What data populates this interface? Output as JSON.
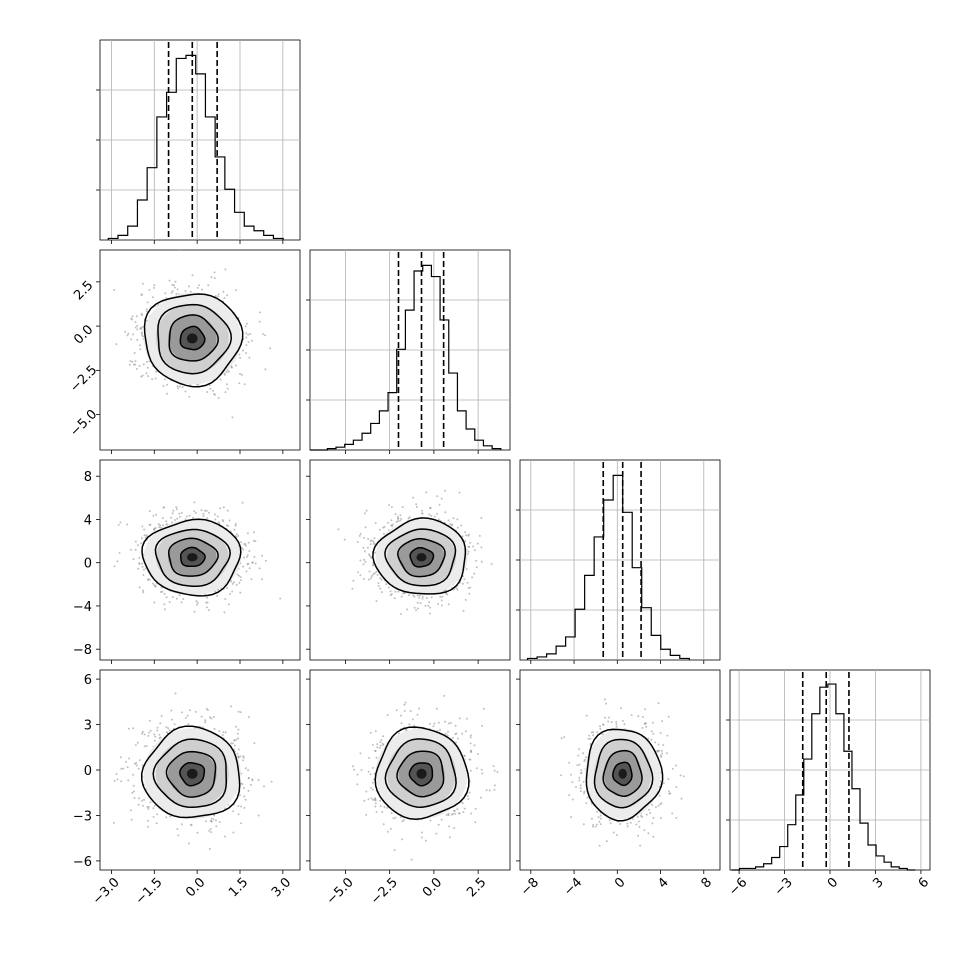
{
  "chart_data": {
    "type": "corner",
    "parameters": [
      {
        "hist": {
          "bins": [
            -3.11,
            -2.77,
            -2.43,
            -2.09,
            -1.75,
            -1.41,
            -1.07,
            -0.73,
            -0.39,
            -0.05,
            0.29,
            0.63,
            0.97,
            1.31,
            1.65,
            1.99,
            2.33,
            2.67,
            3.01
          ],
          "counts": [
            1,
            3,
            9,
            26,
            47,
            80,
            96,
            118,
            120,
            108,
            80,
            54,
            33,
            18,
            9,
            6,
            3,
            1
          ],
          "quantiles": [
            -1.0,
            -0.17,
            0.7
          ],
          "ylim": [
            0,
            130
          ]
        },
        "xlim": [
          -3.4,
          3.6
        ],
        "xticks": [
          -3.0,
          -1.5,
          0.0,
          1.5,
          3.0
        ],
        "xtick_labels": [
          "−3.0",
          "−1.5",
          "0.0",
          "1.5",
          "3.0"
        ]
      },
      {
        "hist": {
          "bins": [
            -7.0,
            -6.51,
            -6.02,
            -5.53,
            -5.04,
            -4.55,
            -4.06,
            -3.57,
            -3.08,
            -2.59,
            -2.1,
            -1.61,
            -1.12,
            -0.63,
            -0.14,
            0.35,
            0.84,
            1.33,
            1.82,
            2.31,
            2.8,
            3.29,
            3.78
          ],
          "counts": [
            0,
            0,
            1,
            2,
            4,
            7,
            12,
            19,
            28,
            41,
            72,
            100,
            128,
            132,
            124,
            93,
            55,
            28,
            15,
            7,
            3,
            1
          ],
          "quantiles": [
            -2.0,
            -0.7,
            0.55
          ],
          "ylim": [
            0,
            143
          ]
        },
        "xlim": [
          -7.0,
          4.3
        ],
        "xticks": [
          -5.0,
          -2.5,
          0.0,
          2.5
        ],
        "xtick_labels": [
          "−5.0",
          "−2.5",
          "0.0",
          "2.5"
        ]
      },
      {
        "hist": {
          "bins": [
            -8.3,
            -7.42,
            -6.54,
            -5.66,
            -4.78,
            -3.9,
            -3.02,
            -2.14,
            -1.26,
            -0.38,
            0.5,
            1.38,
            2.26,
            3.14,
            4.02,
            4.9,
            5.78,
            6.66
          ],
          "counts": [
            1,
            2,
            4,
            9,
            15,
            33,
            55,
            80,
            104,
            120,
            96,
            60,
            34,
            16,
            7,
            3,
            1
          ],
          "quantiles": [
            -1.3,
            0.5,
            2.2
          ],
          "ylim": [
            0,
            130
          ]
        },
        "xlim": [
          -9.0,
          9.5
        ],
        "xticks": [
          -8,
          -4,
          0,
          4,
          8
        ],
        "xtick_labels": [
          "−8",
          "−4",
          "0",
          "4",
          "8"
        ]
      },
      {
        "hist": {
          "bins": [
            -6.5,
            -5.97,
            -5.44,
            -4.91,
            -4.38,
            -3.85,
            -3.32,
            -2.79,
            -2.26,
            -1.73,
            -1.2,
            -0.67,
            -0.14,
            0.39,
            0.92,
            1.45,
            1.98,
            2.51,
            3.04,
            3.57,
            4.04,
            4.57,
            5.1,
            5.63
          ],
          "counts": [
            0,
            1,
            1,
            2,
            4,
            8,
            15,
            29,
            48,
            71,
            100,
            117,
            119,
            100,
            76,
            52,
            30,
            16,
            9,
            5,
            2,
            1,
            0
          ],
          "quantiles": [
            -1.8,
            -0.25,
            1.25
          ],
          "ylim": [
            0,
            128
          ]
        },
        "xlim": [
          -6.6,
          6.6
        ],
        "xticks": [
          -6,
          -3,
          0,
          3,
          6
        ],
        "xtick_labels": [
          "−6",
          "−3",
          "0",
          "3",
          "6"
        ]
      }
    ],
    "ytick_rows": [
      null,
      {
        "ticks": [
          2.5,
          0.0,
          -2.5,
          -5.0
        ],
        "labels": [
          "2.5",
          "0.0",
          "−2.5",
          "−5.0"
        ],
        "rotated": true
      },
      {
        "ticks": [
          8,
          4,
          0,
          -4,
          -8
        ],
        "labels": [
          "8",
          "4",
          "0",
          "−4",
          "−8"
        ],
        "rotated": false
      },
      {
        "ticks": [
          6,
          3,
          0,
          -3,
          -6
        ],
        "labels": [
          "6",
          "3",
          "0",
          "−3",
          "−6"
        ],
        "rotated": false
      }
    ],
    "pairs": [
      {
        "row": 1,
        "col": 0,
        "center": [
          -0.17,
          -0.7
        ],
        "sigma": [
          0.85,
          1.3
        ]
      },
      {
        "row": 2,
        "col": 0,
        "center": [
          -0.17,
          0.5
        ],
        "sigma": [
          0.85,
          1.75
        ]
      },
      {
        "row": 2,
        "col": 1,
        "center": [
          -0.7,
          0.5
        ],
        "sigma": [
          1.3,
          1.75
        ]
      },
      {
        "row": 3,
        "col": 0,
        "center": [
          -0.17,
          -0.25
        ],
        "sigma": [
          0.85,
          1.5
        ]
      },
      {
        "row": 3,
        "col": 1,
        "center": [
          -0.7,
          -0.25
        ],
        "sigma": [
          1.3,
          1.5
        ]
      },
      {
        "row": 3,
        "col": 2,
        "center": [
          0.5,
          -0.25
        ],
        "sigma": [
          1.75,
          1.5
        ]
      }
    ],
    "contour_levels_sigma": [
      0.5,
      1.0,
      1.5,
      2.0
    ],
    "grid": true,
    "colors": {
      "line": "#000000",
      "points": "#8c8c8c",
      "grid": "#b0b0b0"
    }
  }
}
